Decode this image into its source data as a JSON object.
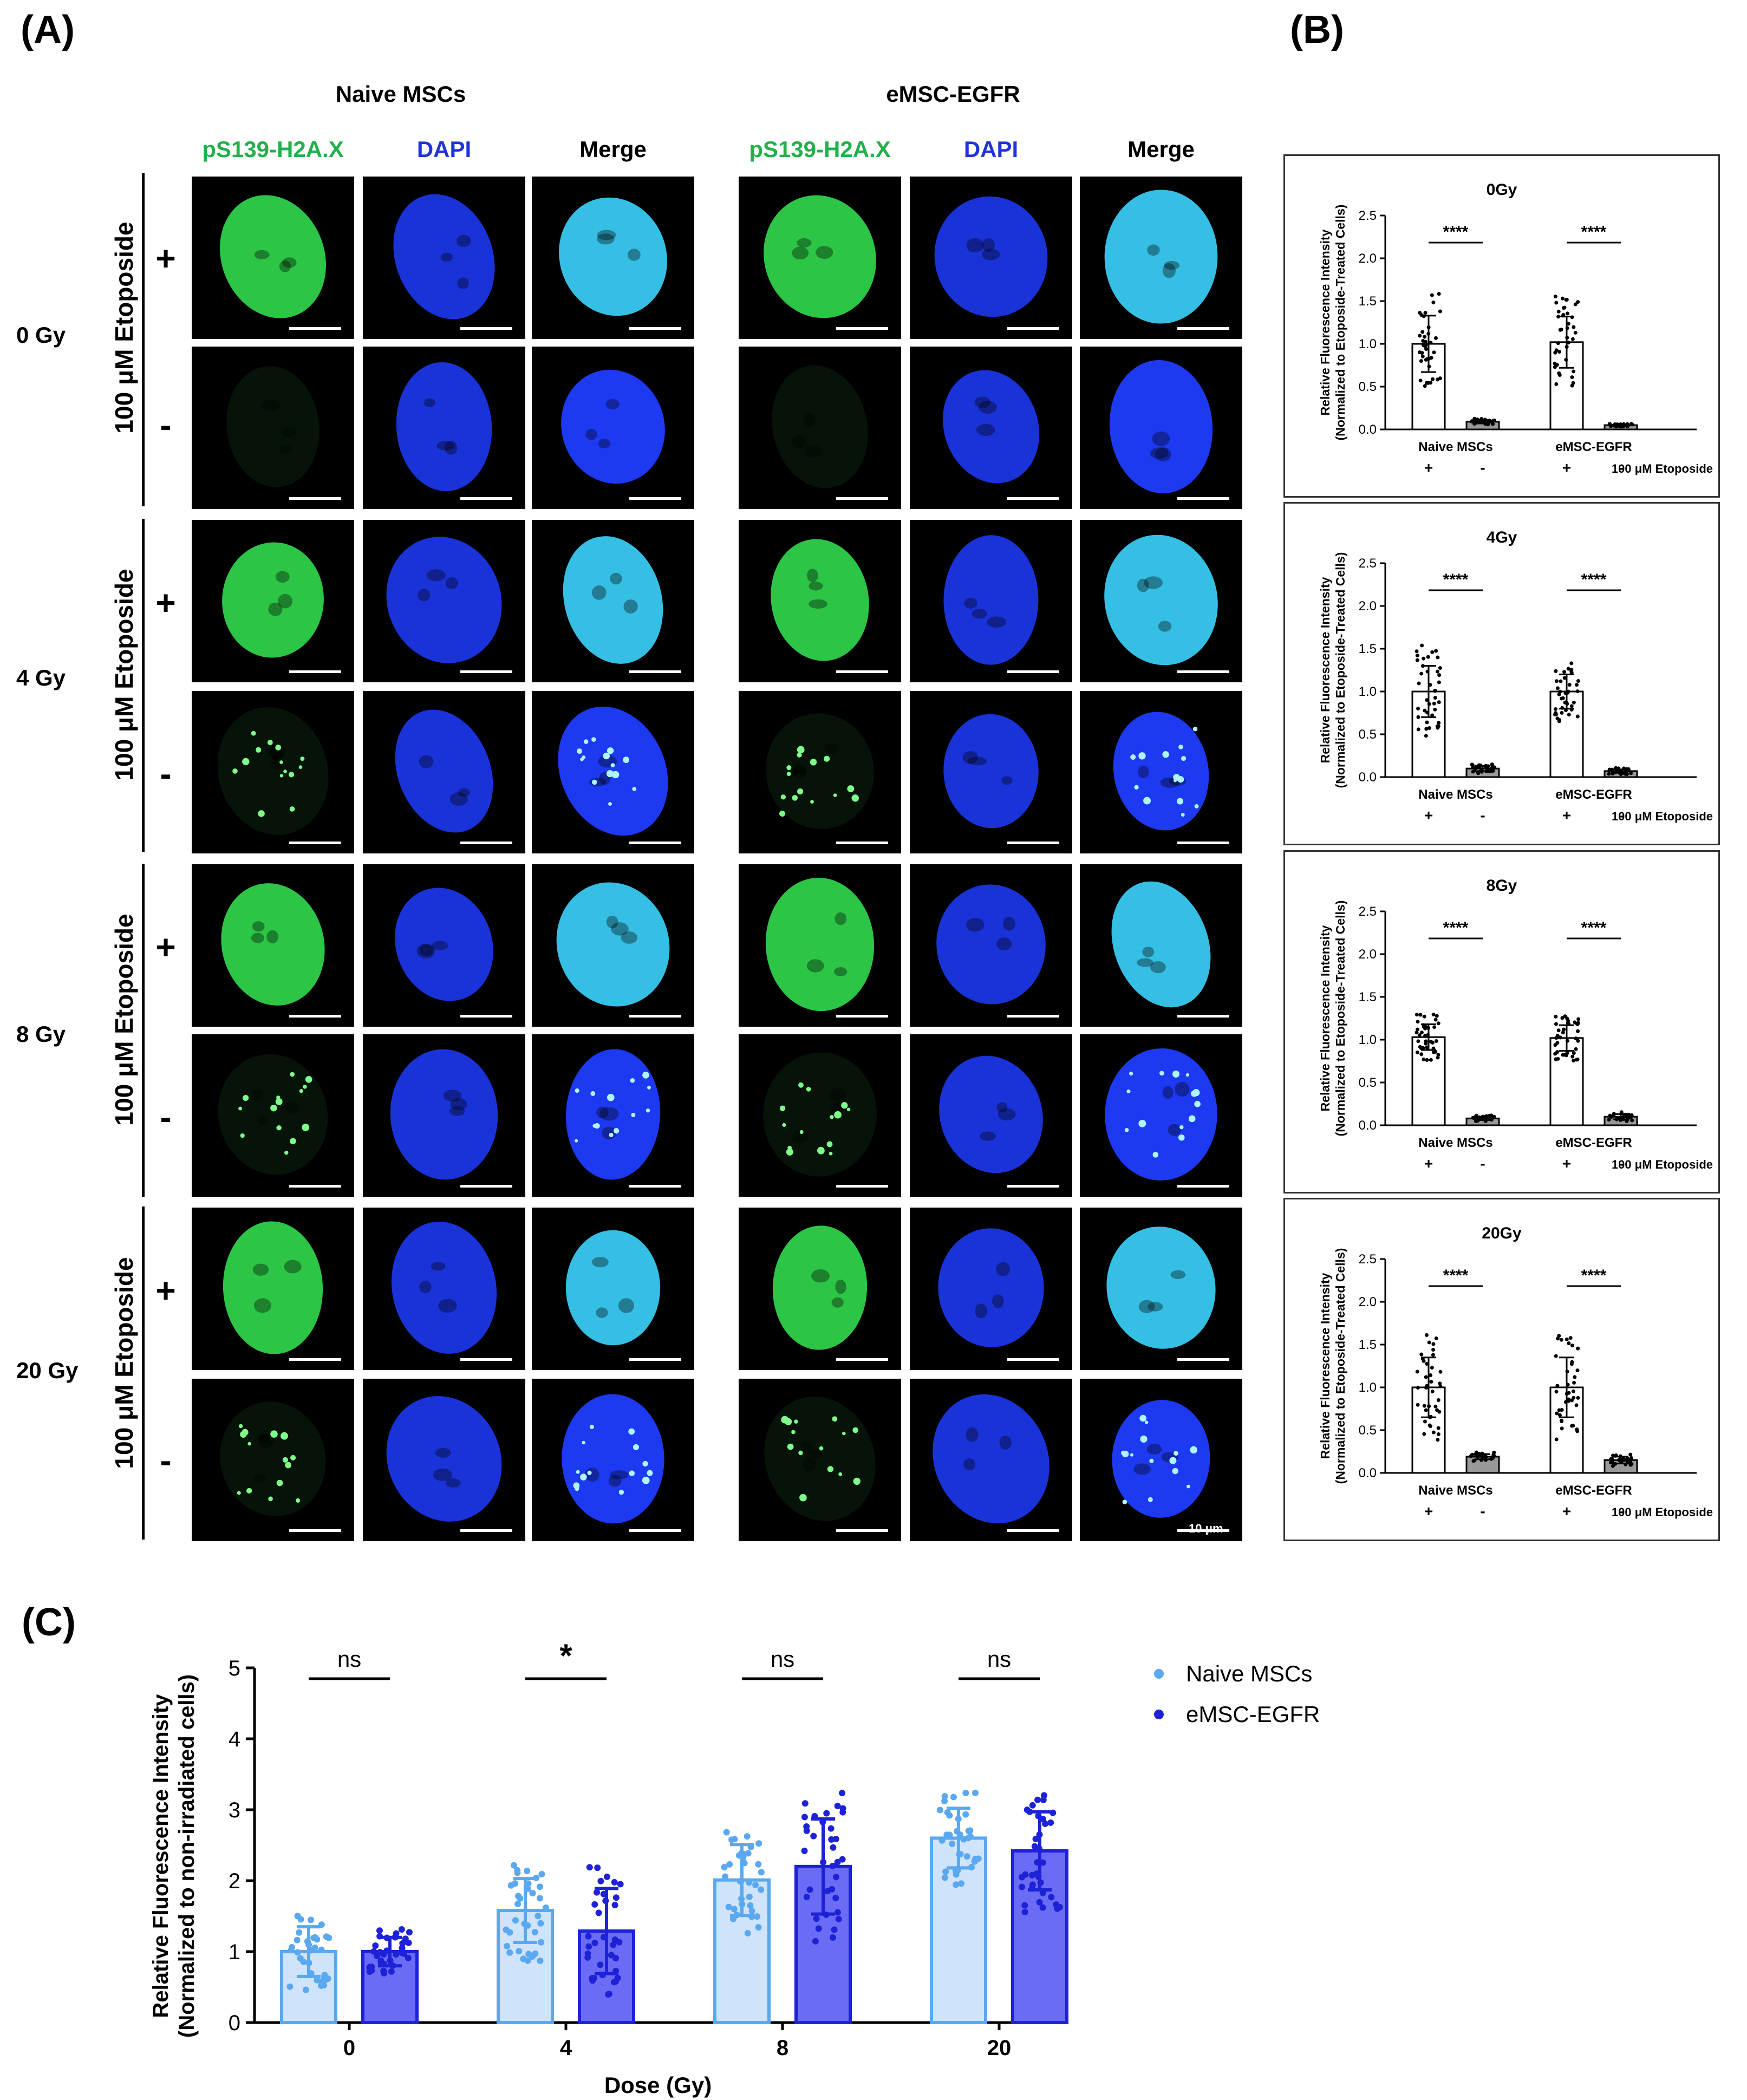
{
  "panels": {
    "A": "(A)",
    "B": "(B)",
    "C": "(C)"
  },
  "panel_a": {
    "groups": [
      "Naive MSCs",
      "eMSC-EGFR"
    ],
    "channels": [
      "pS139-H2A.X",
      "DAPI",
      "Merge"
    ],
    "doses": [
      "0 Gy",
      "4 Gy",
      "8 Gy",
      "20 Gy"
    ],
    "treatment_label": "100 μM Etoposide",
    "plus": "+",
    "minus": "-",
    "scale_bar": "10 μm",
    "colors": {
      "green": "#2fd04a",
      "blue": "#1f3cff",
      "merge": "#39c9f0"
    }
  },
  "chart_data": [
    {
      "type": "bar",
      "title": "0Gy",
      "ylabel": "Relative Fluorescence Intensity (Normalized to Etoposide-Treated Cells)",
      "categories": [
        "Naive MSCs +",
        "Naive MSCs -",
        "eMSC-EGFR +",
        "eMSC-EGFR -"
      ],
      "group_labels": [
        "Naive MSCs",
        "eMSC-EGFR"
      ],
      "treatment_signs": [
        "+",
        "-",
        "+",
        "-"
      ],
      "treatment_label": "100 μM Etoposide",
      "values": [
        1.0,
        0.09,
        1.02,
        0.05
      ],
      "errors": [
        0.33,
        0.02,
        0.3,
        0.01
      ],
      "ylim": [
        0,
        2.5
      ],
      "yticks": [
        "0.0",
        "0.5",
        "1.0",
        "1.5",
        "2.0",
        "2.5"
      ],
      "significance": [
        "****",
        "****"
      ]
    },
    {
      "type": "bar",
      "title": "4Gy",
      "ylabel": "Relative Fluorescence Intensity (Normalized to Etoposide-Treated Cells)",
      "categories": [
        "Naive MSCs +",
        "Naive MSCs -",
        "eMSC-EGFR +",
        "eMSC-EGFR -"
      ],
      "group_labels": [
        "Naive MSCs",
        "eMSC-EGFR"
      ],
      "treatment_signs": [
        "+",
        "-",
        "+",
        "-"
      ],
      "treatment_label": "100 μM Etoposide",
      "values": [
        1.0,
        0.1,
        1.0,
        0.07
      ],
      "errors": [
        0.3,
        0.03,
        0.2,
        0.02
      ],
      "ylim": [
        0,
        2.5
      ],
      "yticks": [
        "0.0",
        "0.5",
        "1.0",
        "1.5",
        "2.0",
        "2.5"
      ],
      "significance": [
        "****",
        "****"
      ]
    },
    {
      "type": "bar",
      "title": "8Gy",
      "ylabel": "Relative Fluorescence Intensity (Normalized to Etoposide-Treated Cells)",
      "categories": [
        "Naive MSCs +",
        "Naive MSCs -",
        "eMSC-EGFR +",
        "eMSC-EGFR -"
      ],
      "group_labels": [
        "Naive MSCs",
        "eMSC-EGFR"
      ],
      "treatment_signs": [
        "+",
        "-",
        "+",
        "-"
      ],
      "treatment_label": "100 μM Etoposide",
      "values": [
        1.03,
        0.08,
        1.02,
        0.1
      ],
      "errors": [
        0.15,
        0.02,
        0.15,
        0.03
      ],
      "ylim": [
        0,
        2.5
      ],
      "yticks": [
        "0.0",
        "0.5",
        "1.0",
        "1.5",
        "2.0",
        "2.5"
      ],
      "significance": [
        "****",
        "****"
      ]
    },
    {
      "type": "bar",
      "title": "20Gy",
      "ylabel": "Relative Fluorescence Intensity (Normalized to Etoposide-Treated Cells)",
      "categories": [
        "Naive MSCs +",
        "Naive MSCs -",
        "eMSC-EGFR +",
        "eMSC-EGFR -"
      ],
      "group_labels": [
        "Naive MSCs",
        "eMSC-EGFR"
      ],
      "treatment_signs": [
        "+",
        "-",
        "+",
        "-"
      ],
      "treatment_label": "100 μM Etoposide",
      "values": [
        1.0,
        0.19,
        1.0,
        0.15
      ],
      "errors": [
        0.35,
        0.03,
        0.35,
        0.04
      ],
      "ylim": [
        0,
        2.5
      ],
      "yticks": [
        "0.0",
        "0.5",
        "1.0",
        "1.5",
        "2.0",
        "2.5"
      ],
      "significance": [
        "****",
        "****"
      ]
    },
    {
      "type": "bar",
      "xlabel": "Dose (Gy)",
      "ylabel": "Relative Fluorescence Intensity (Normalized to non-irradiated cells)",
      "categories": [
        "0",
        "4",
        "8",
        "20"
      ],
      "series": [
        {
          "name": "Naive MSCs",
          "values": [
            1.0,
            1.58,
            2.01,
            2.6
          ],
          "errors": [
            0.35,
            0.45,
            0.5,
            0.42
          ],
          "color": "#5aa8f0",
          "fill": "#cfe3fa"
        },
        {
          "name": "eMSC-EGFR",
          "values": [
            1.0,
            1.29,
            2.2,
            2.42
          ],
          "errors": [
            0.2,
            0.6,
            0.67,
            0.55
          ],
          "color": "#1e22d6",
          "fill": "#6b6cf5"
        }
      ],
      "ylim": [
        0,
        5
      ],
      "yticks": [
        "0",
        "1",
        "2",
        "3",
        "4",
        "5"
      ],
      "significance": [
        "ns",
        "*",
        "ns",
        "ns"
      ],
      "legend_position": "top-right"
    }
  ]
}
